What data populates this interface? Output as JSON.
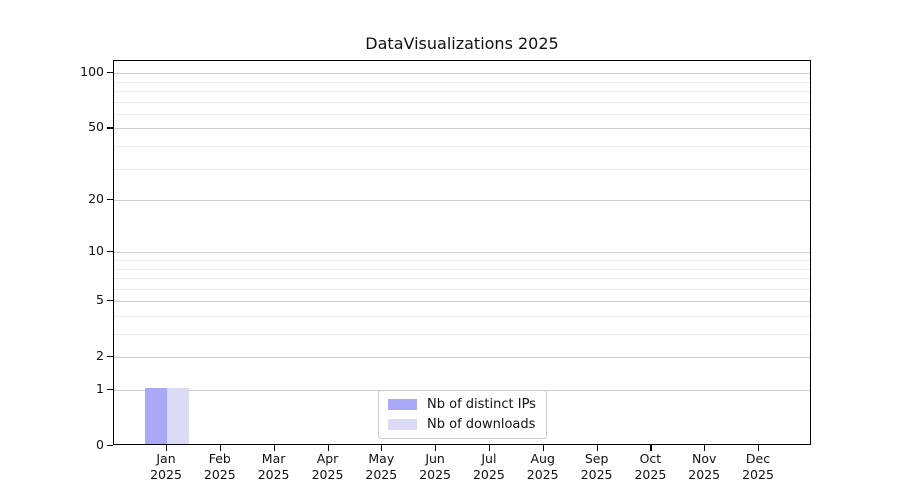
{
  "chart_data": {
    "type": "bar",
    "title": "DataVisualizations 2025",
    "categories": [
      "Jan 2025",
      "Feb 2025",
      "Mar 2025",
      "Apr 2025",
      "May 2025",
      "Jun 2025",
      "Jul 2025",
      "Aug 2025",
      "Sep 2025",
      "Oct 2025",
      "Nov 2025",
      "Dec 2025"
    ],
    "series": [
      {
        "name": "Nb of distinct IPs",
        "color": "#a9a9f6",
        "values": [
          1,
          0,
          0,
          0,
          0,
          0,
          0,
          0,
          0,
          0,
          0,
          0
        ]
      },
      {
        "name": "Nb of downloads",
        "color": "#dbdbf8",
        "values": [
          1,
          0,
          0,
          0,
          0,
          0,
          0,
          0,
          0,
          0,
          0,
          0
        ]
      }
    ],
    "xlabel": "",
    "ylabel": "",
    "yscale": "log10(1+v)",
    "ylim": [
      0,
      116
    ],
    "y_major_ticks": [
      0,
      1,
      2,
      5,
      10,
      20,
      50,
      100
    ],
    "y_minor_ticks": [
      3,
      4,
      6,
      7,
      8,
      9,
      30,
      40,
      60,
      70,
      80,
      90
    ],
    "grid": true,
    "legend_position": "lower center inside plot"
  },
  "style": {
    "grid_major_color": "#cfcfcf",
    "grid_minor_color": "#ececec",
    "spine_color": "#000000",
    "text_color": "#111111",
    "background": "#ffffff"
  }
}
